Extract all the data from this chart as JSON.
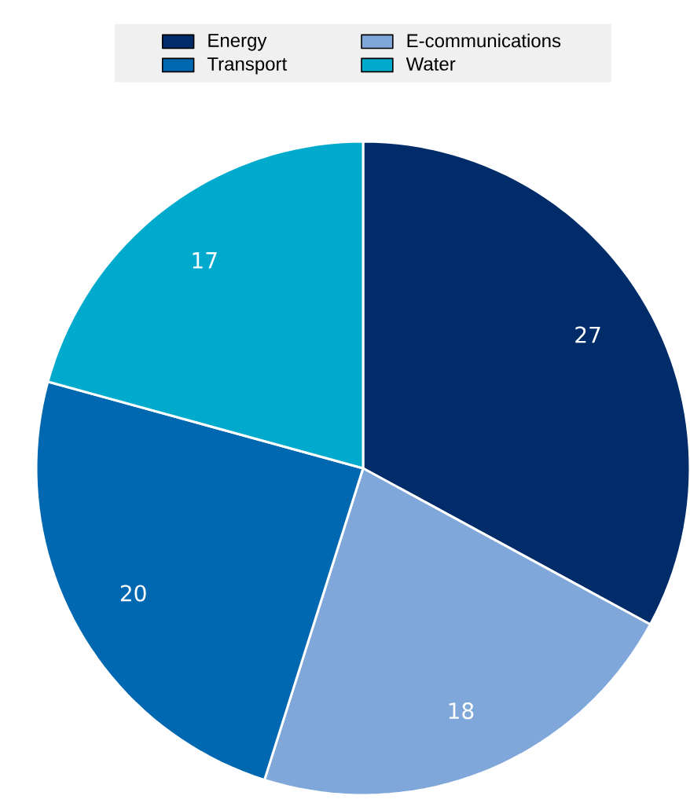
{
  "chart_data": {
    "type": "pie",
    "categories": [
      "Energy",
      "E-communications",
      "Transport",
      "Water"
    ],
    "values": [
      27,
      18,
      20,
      17
    ],
    "colors": [
      "#002d6a",
      "#7fa7d9",
      "#0067b1",
      "#00aacc"
    ],
    "data_labels": true,
    "legend": "top"
  }
}
